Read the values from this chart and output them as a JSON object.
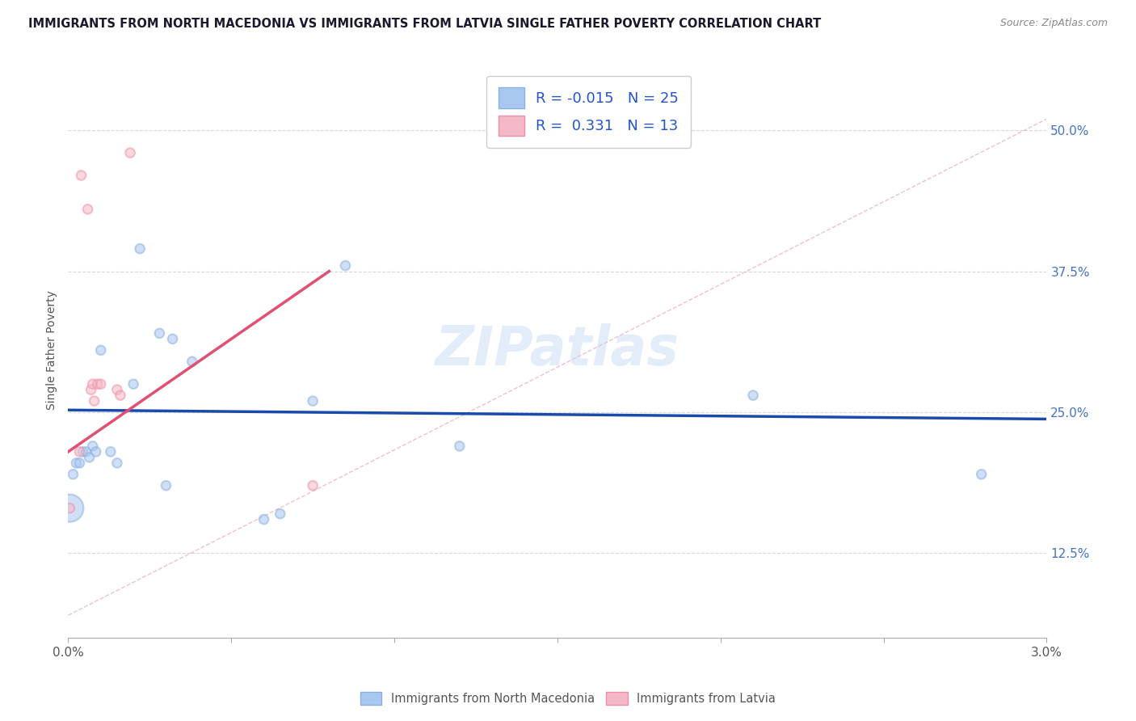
{
  "title": "IMMIGRANTS FROM NORTH MACEDONIA VS IMMIGRANTS FROM LATVIA SINGLE FATHER POVERTY CORRELATION CHART",
  "source": "Source: ZipAtlas.com",
  "ylabel": "Single Father Poverty",
  "legend_label1": "Immigrants from North Macedonia",
  "legend_label2": "Immigrants from Latvia",
  "R1": "-0.015",
  "N1": "25",
  "R2": "0.331",
  "N2": "13",
  "xlim": [
    0.0,
    0.03
  ],
  "ylim": [
    0.05,
    0.56
  ],
  "xticks": [
    0.0,
    0.005,
    0.01,
    0.015,
    0.02,
    0.025,
    0.03
  ],
  "xtick_labels": [
    "0.0%",
    "",
    "",
    "",
    "",
    "",
    "3.0%"
  ],
  "ytick_vals": [
    0.125,
    0.25,
    0.375,
    0.5
  ],
  "ytick_labels": [
    "12.5%",
    "25.0%",
    "37.5%",
    "50.0%"
  ],
  "color_blue": "#A8C8F0",
  "color_pink": "#F5B8C8",
  "color_blue_dark": "#8AB0E0",
  "color_pink_dark": "#F090A8",
  "color_blue_line": "#1A4AAA",
  "color_pink_line": "#E05070",
  "color_diag_line": "#F0B0C0",
  "watermark": "ZIPatlas",
  "blue_points_x": [
    0.00015,
    0.00025,
    0.00035,
    0.00045,
    0.00055,
    0.00065,
    0.00075,
    0.00085,
    0.001,
    0.0013,
    0.0015,
    0.002,
    0.0022,
    0.0028,
    0.003,
    0.0032,
    0.0038,
    0.006,
    0.0065,
    0.0075,
    0.0085,
    0.012,
    0.021,
    0.028,
    5e-05
  ],
  "blue_points_y": [
    0.195,
    0.205,
    0.205,
    0.215,
    0.215,
    0.21,
    0.22,
    0.215,
    0.305,
    0.215,
    0.205,
    0.275,
    0.395,
    0.32,
    0.185,
    0.315,
    0.295,
    0.155,
    0.16,
    0.26,
    0.38,
    0.22,
    0.265,
    0.195,
    0.165
  ],
  "blue_sizes": [
    70,
    70,
    70,
    70,
    70,
    70,
    70,
    70,
    70,
    70,
    70,
    70,
    70,
    70,
    70,
    70,
    70,
    70,
    70,
    70,
    70,
    70,
    70,
    70,
    600
  ],
  "pink_points_x": [
    5e-05,
    0.00035,
    0.0004,
    0.0006,
    0.0007,
    0.00075,
    0.0008,
    0.0009,
    0.001,
    0.0015,
    0.0016,
    0.0019,
    0.0075
  ],
  "pink_points_y": [
    0.165,
    0.215,
    0.46,
    0.43,
    0.27,
    0.275,
    0.26,
    0.275,
    0.275,
    0.27,
    0.265,
    0.48,
    0.185
  ],
  "pink_sizes": [
    70,
    70,
    70,
    70,
    70,
    70,
    70,
    70,
    70,
    70,
    70,
    70,
    70
  ],
  "blue_trend_x": [
    0.0,
    0.03
  ],
  "blue_trend_y": [
    0.252,
    0.244
  ],
  "pink_trend_x": [
    0.0,
    0.008
  ],
  "pink_trend_y": [
    0.215,
    0.375
  ],
  "diag_line_x": [
    0.0,
    0.03
  ],
  "diag_line_y": [
    0.07,
    0.51
  ]
}
